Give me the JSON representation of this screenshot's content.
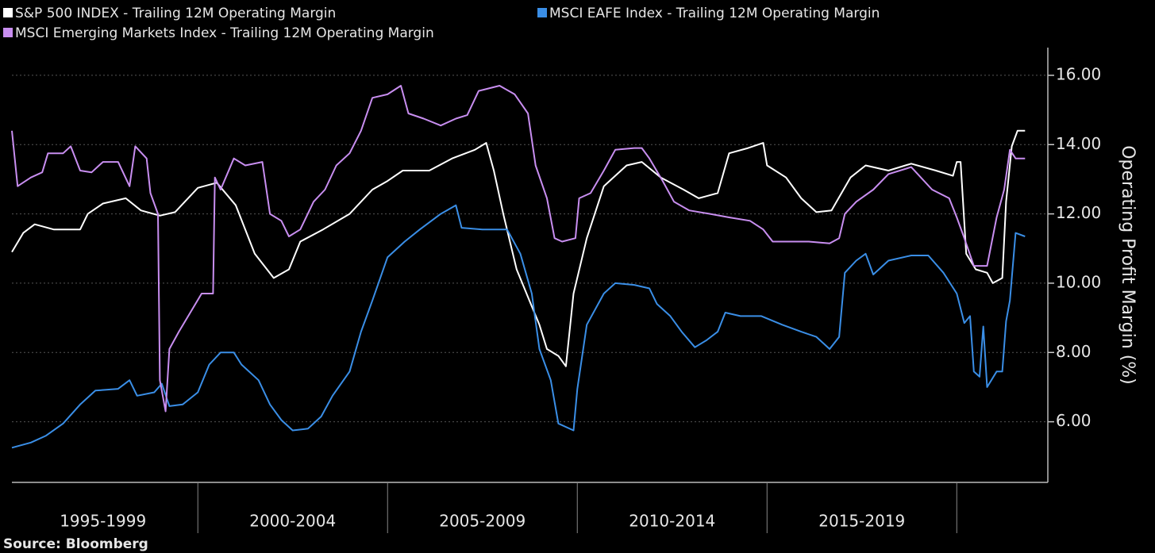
{
  "chart_data": {
    "type": "line",
    "source": "Source: Bloomberg",
    "y_label": "Operating Profit Margin (%)",
    "xlim": [
      1995.1,
      2022.4
    ],
    "ylim": [
      4.25,
      16.8
    ],
    "yticks": [
      {
        "value": 6,
        "label": "6.00"
      },
      {
        "value": 8,
        "label": "8.00"
      },
      {
        "value": 10,
        "label": "10.00"
      },
      {
        "value": 12,
        "label": "12.00"
      },
      {
        "value": 14,
        "label": "14.00"
      },
      {
        "value": 16,
        "label": "16.00"
      }
    ],
    "xticks": [
      {
        "value": 1997.5,
        "label": "1995-1999"
      },
      {
        "value": 2002.5,
        "label": "2000-2004"
      },
      {
        "value": 2007.5,
        "label": "2005-2009"
      },
      {
        "value": 2012.5,
        "label": "2010-2014"
      },
      {
        "value": 2017.5,
        "label": "2015-2019"
      }
    ],
    "xseparators": [
      2000,
      2005,
      2010,
      2015,
      2020
    ],
    "grid": true,
    "legend": "top",
    "series": [
      {
        "name": "S&P 500 INDEX - Trailing 12M Operating Margin",
        "color": "#ffffff",
        "x": [
          1995.1,
          1995.4,
          1995.7,
          1996.2,
          1996.9,
          1997.1,
          1997.5,
          1998.1,
          1998.5,
          1999.0,
          1999.4,
          2000.0,
          2000.5,
          2001.0,
          2001.5,
          2002.0,
          2002.4,
          2002.7,
          2003.3,
          2004.0,
          2004.6,
          2005.0,
          2005.4,
          2006.1,
          2006.7,
          2007.3,
          2007.6,
          2007.8,
          2008.05,
          2008.4,
          2008.7,
          2009.0,
          2009.2,
          2009.5,
          2009.7,
          2009.9,
          2010.25,
          2010.7,
          2011.3,
          2011.7,
          2012.2,
          2012.8,
          2013.2,
          2013.7,
          2014.0,
          2014.5,
          2014.9,
          2015.0,
          2015.5,
          2015.9,
          2016.3,
          2016.7,
          2017.2,
          2017.6,
          2018.2,
          2018.8,
          2019.45,
          2019.9,
          2020.0,
          2020.1,
          2020.25,
          2020.5,
          2020.8,
          2020.95,
          2021.2,
          2021.3,
          2021.45,
          2021.6,
          2021.8
        ],
        "values": [
          10.9,
          11.45,
          11.7,
          11.55,
          11.55,
          12.0,
          12.3,
          12.45,
          12.1,
          11.95,
          12.05,
          12.75,
          12.9,
          12.25,
          10.85,
          10.15,
          10.4,
          11.2,
          11.55,
          12.0,
          12.7,
          12.95,
          13.25,
          13.25,
          13.6,
          13.85,
          14.05,
          13.25,
          12.0,
          10.4,
          9.6,
          8.8,
          8.1,
          7.9,
          7.6,
          9.7,
          11.3,
          12.8,
          13.4,
          13.5,
          13.05,
          12.7,
          12.45,
          12.6,
          13.75,
          13.9,
          14.05,
          13.4,
          13.05,
          12.45,
          12.05,
          12.1,
          13.05,
          13.4,
          13.25,
          13.45,
          13.25,
          13.1,
          13.5,
          13.5,
          10.85,
          10.4,
          10.3,
          10.0,
          10.15,
          12.35,
          13.95,
          14.4,
          14.4
        ]
      },
      {
        "name": "MSCI EAFE Index - Trailing 12M Operating Margin",
        "color": "#3a8ee6",
        "x": [
          1995.1,
          1995.6,
          1996.0,
          1996.45,
          1996.9,
          1997.3,
          1997.9,
          1998.2,
          1998.4,
          1998.85,
          1999.05,
          1999.25,
          1999.6,
          2000.0,
          2000.3,
          2000.6,
          2000.95,
          2001.15,
          2001.6,
          2001.9,
          2002.2,
          2002.5,
          2002.9,
          2003.25,
          2003.55,
          2004.0,
          2004.3,
          2004.6,
          2005.0,
          2005.45,
          2005.85,
          2006.4,
          2006.8,
          2006.95,
          2007.5,
          2008.15,
          2008.5,
          2008.8,
          2009.0,
          2009.3,
          2009.5,
          2009.9,
          2010.0,
          2010.25,
          2010.7,
          2011.0,
          2011.5,
          2011.9,
          2012.1,
          2012.45,
          2012.75,
          2013.1,
          2013.4,
          2013.7,
          2013.9,
          2014.3,
          2014.85,
          2015.4,
          2015.9,
          2016.3,
          2016.65,
          2016.9,
          2017.05,
          2017.35,
          2017.6,
          2017.8,
          2018.2,
          2018.8,
          2019.25,
          2019.65,
          2020.0,
          2020.2,
          2020.35,
          2020.45,
          2020.6,
          2020.7,
          2020.8,
          2021.05,
          2021.2,
          2021.3,
          2021.4,
          2021.55,
          2021.8
        ],
        "values": [
          5.25,
          5.4,
          5.6,
          5.95,
          6.5,
          6.9,
          6.95,
          7.2,
          6.75,
          6.85,
          7.1,
          6.45,
          6.5,
          6.85,
          7.65,
          8.0,
          8.0,
          7.65,
          7.2,
          6.5,
          6.05,
          5.75,
          5.8,
          6.15,
          6.75,
          7.45,
          8.6,
          9.5,
          10.75,
          11.2,
          11.55,
          12.0,
          12.25,
          11.6,
          11.55,
          11.55,
          10.85,
          9.7,
          8.1,
          7.2,
          5.95,
          5.75,
          6.95,
          8.8,
          9.7,
          10.0,
          9.95,
          9.85,
          9.4,
          9.05,
          8.6,
          8.15,
          8.35,
          8.6,
          9.15,
          9.05,
          9.05,
          8.8,
          8.6,
          8.45,
          8.1,
          8.45,
          10.3,
          10.65,
          10.85,
          10.25,
          10.65,
          10.8,
          10.8,
          10.3,
          9.7,
          8.85,
          9.05,
          7.45,
          7.3,
          8.75,
          7.0,
          7.45,
          7.45,
          8.9,
          9.5,
          11.45,
          11.35
        ]
      },
      {
        "name": "MSCI Emerging Markets Index - Trailing 12M Operating Margin",
        "color": "#c88ef0",
        "x": [
          1995.1,
          1995.25,
          1995.6,
          1995.9,
          1996.05,
          1996.45,
          1996.65,
          1996.9,
          1997.2,
          1997.5,
          1997.9,
          1998.2,
          1998.35,
          1998.65,
          1998.75,
          1998.95,
          1999.0,
          1999.15,
          1999.25,
          1999.5,
          1999.8,
          2000.1,
          2000.4,
          2000.45,
          2000.6,
          2000.95,
          2001.25,
          2001.7,
          2001.9,
          2002.2,
          2002.4,
          2002.7,
          2003.05,
          2003.35,
          2003.65,
          2004.0,
          2004.3,
          2004.6,
          2005.0,
          2005.35,
          2005.55,
          2005.95,
          2006.4,
          2006.8,
          2007.1,
          2007.4,
          2007.95,
          2008.35,
          2008.7,
          2008.9,
          2009.2,
          2009.4,
          2009.6,
          2009.95,
          2010.05,
          2010.35,
          2010.7,
          2011.0,
          2011.5,
          2011.7,
          2011.9,
          2012.25,
          2012.55,
          2012.95,
          2013.5,
          2014.0,
          2014.55,
          2014.9,
          2015.15,
          2015.7,
          2016.1,
          2016.65,
          2016.9,
          2017.05,
          2017.35,
          2017.8,
          2018.2,
          2018.8,
          2019.35,
          2019.8,
          2020.0,
          2020.2,
          2020.45,
          2020.8,
          2021.05,
          2021.25,
          2021.4,
          2021.55,
          2021.8
        ],
        "values": [
          14.4,
          12.8,
          13.05,
          13.2,
          13.75,
          13.75,
          13.95,
          13.25,
          13.2,
          13.5,
          13.5,
          12.8,
          13.95,
          13.6,
          12.6,
          12.0,
          7.2,
          6.3,
          8.1,
          8.6,
          9.15,
          9.7,
          9.7,
          13.05,
          12.7,
          13.6,
          13.4,
          13.5,
          12.0,
          11.8,
          11.35,
          11.55,
          12.35,
          12.7,
          13.4,
          13.75,
          14.4,
          15.35,
          15.45,
          15.7,
          14.9,
          14.75,
          14.55,
          14.75,
          14.85,
          15.55,
          15.7,
          15.45,
          14.9,
          13.4,
          12.45,
          11.3,
          11.2,
          11.3,
          12.45,
          12.6,
          13.25,
          13.85,
          13.9,
          13.9,
          13.6,
          12.95,
          12.35,
          12.1,
          12.0,
          11.9,
          11.8,
          11.55,
          11.2,
          11.2,
          11.2,
          11.15,
          11.3,
          12.0,
          12.35,
          12.7,
          13.15,
          13.35,
          12.7,
          12.45,
          11.9,
          11.3,
          10.5,
          10.5,
          11.9,
          12.7,
          13.85,
          13.6,
          13.6
        ]
      }
    ]
  }
}
